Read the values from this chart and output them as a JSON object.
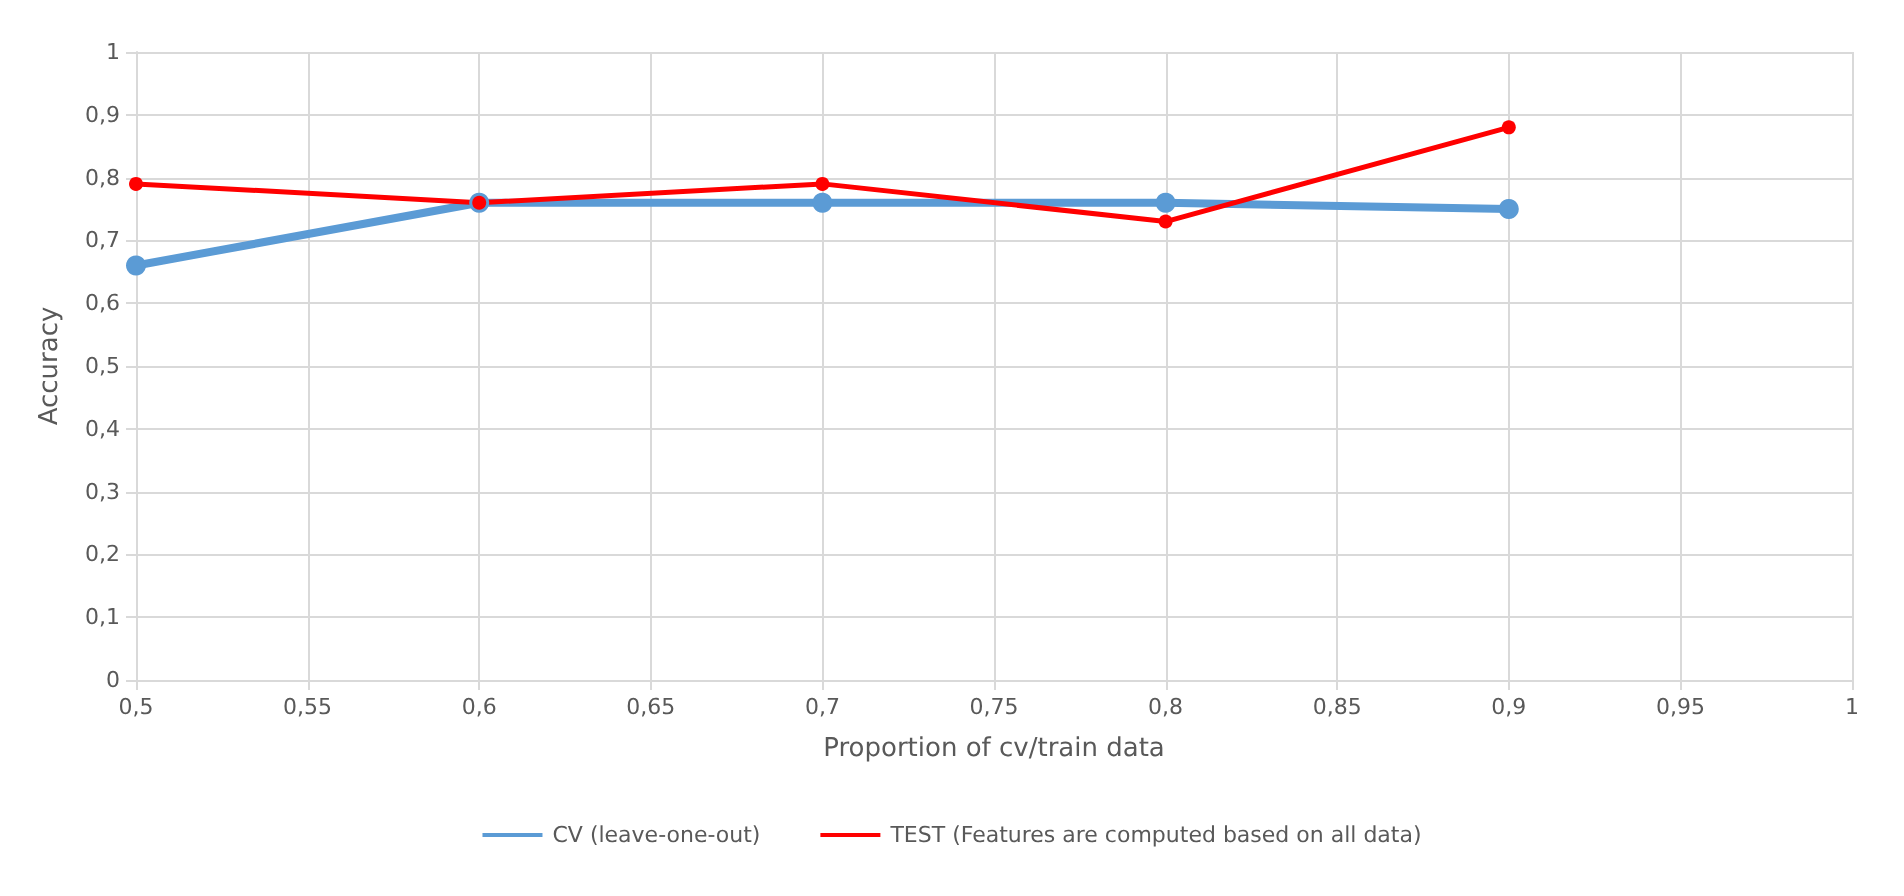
{
  "chart_data": {
    "type": "line",
    "xlabel": "Proportion of cv/train data",
    "ylabel": "Accuracy",
    "x": [
      0.5,
      0.6,
      0.7,
      0.8,
      0.9
    ],
    "series": [
      {
        "name": "CV (leave-one-out)",
        "color": "#5b9bd5",
        "values": [
          0.66,
          0.76,
          0.76,
          0.76,
          0.75
        ]
      },
      {
        "name": "TEST (Features are computed based on all data)",
        "color": "#ff0000",
        "values": [
          0.79,
          0.76,
          0.79,
          0.73,
          0.88
        ]
      }
    ],
    "xlim": [
      0.5,
      1
    ],
    "xticks": [
      {
        "value": 0.5,
        "label": "0,5"
      },
      {
        "value": 0.55,
        "label": "0,55"
      },
      {
        "value": 0.6,
        "label": "0,6"
      },
      {
        "value": 0.65,
        "label": "0,65"
      },
      {
        "value": 0.7,
        "label": "0,7"
      },
      {
        "value": 0.75,
        "label": "0,75"
      },
      {
        "value": 0.8,
        "label": "0,8"
      },
      {
        "value": 0.85,
        "label": "0,85"
      },
      {
        "value": 0.9,
        "label": "0,9"
      },
      {
        "value": 0.95,
        "label": "0,95"
      },
      {
        "value": 1,
        "label": "1"
      }
    ],
    "ylim": [
      0,
      1
    ],
    "yticks": [
      0,
      {
        "value": 0.1,
        "label": "0,1"
      },
      {
        "value": 0.2,
        "label": "0,2"
      },
      {
        "value": 0.3,
        "label": "0,3"
      },
      {
        "value": 0.4,
        "label": "0,4"
      },
      {
        "value": 0.5,
        "label": "0,5"
      },
      {
        "value": 0.6,
        "label": "0,6"
      },
      {
        "value": 0.7,
        "label": "0,7"
      },
      {
        "value": 0.8,
        "label": "0,8"
      },
      {
        "value": 0.9,
        "label": "0,9"
      },
      1
    ],
    "grid": true,
    "legend": "bottom",
    "marker": "circle",
    "line_style": "solid"
  }
}
